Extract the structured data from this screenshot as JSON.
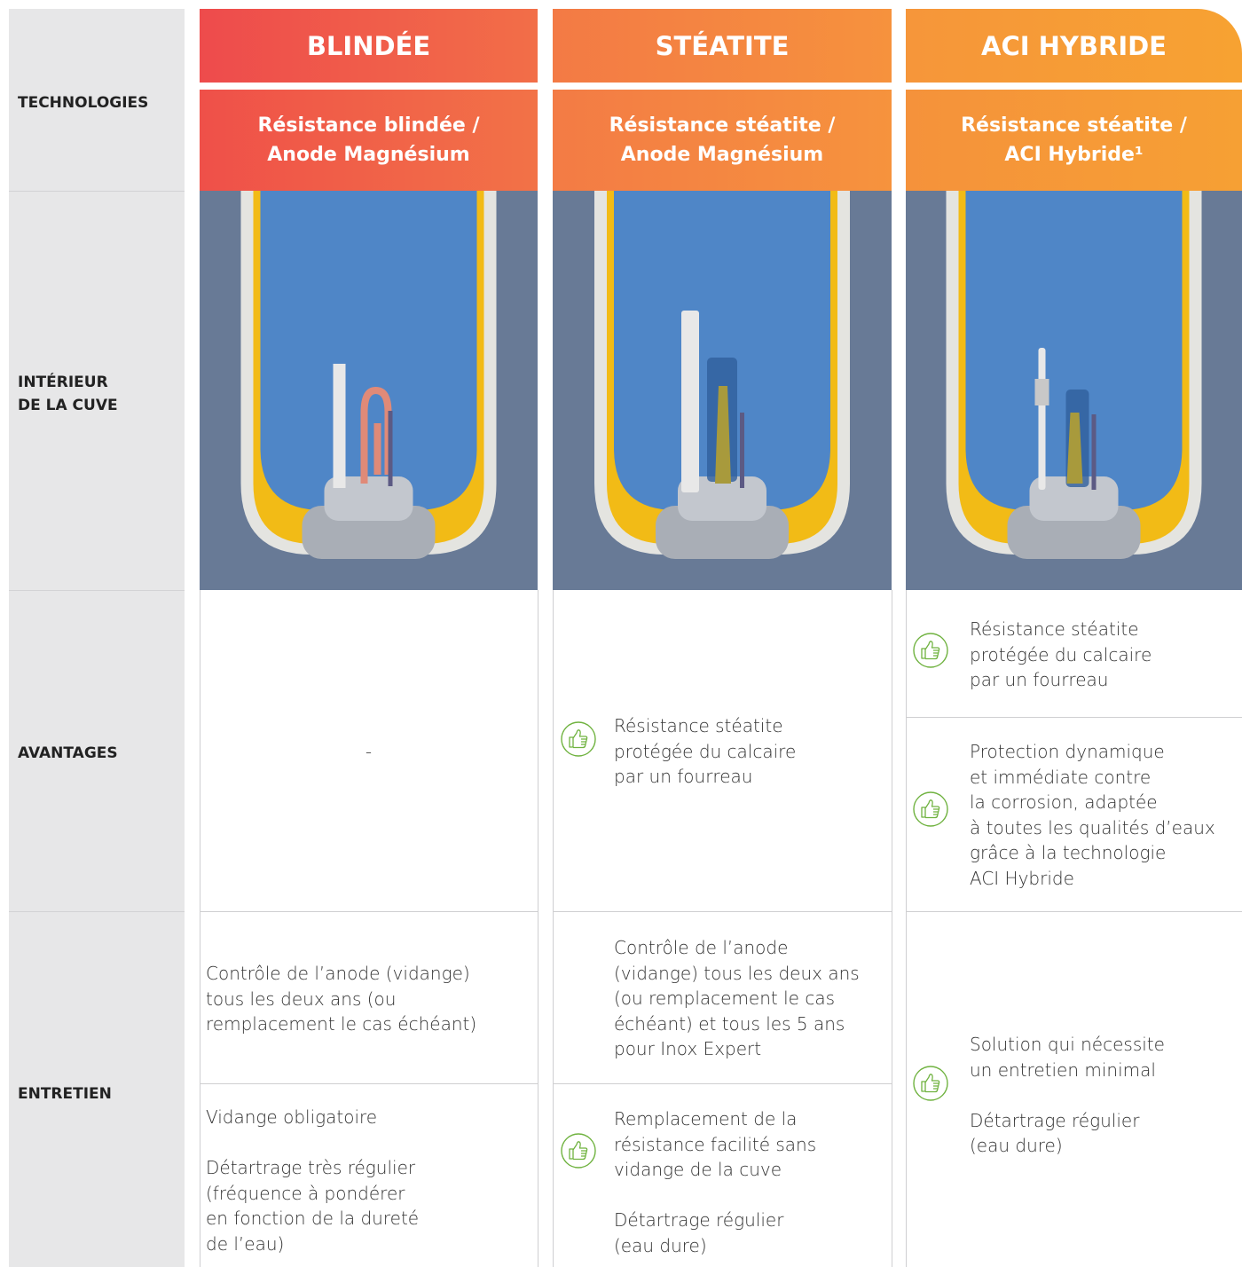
{
  "row_labels": {
    "technologies": "TECHNOLOGIES",
    "interior": "INTÉRIEUR\nDE LA CUVE",
    "advantages": "AVANTAGES",
    "maintenance": "ENTRETIEN"
  },
  "columns": [
    {
      "title": "BLINDÉE",
      "subtitle": "Résistance blindée /\nAnode Magnésium",
      "advantages": [
        "-"
      ],
      "maintenance": [
        "Contrôle de l’anode (vidange)\ntous les deux ans (ou\nremplacement le cas échéant)",
        "Vidange obligatoire\n\nDétartrage très régulier\n(fréquence à pondérer\nen fonction de la dureté\nde l’eau)"
      ]
    },
    {
      "title": "STÉATITE",
      "subtitle": "Résistance stéatite /\nAnode Magnésium",
      "advantages": [
        "Résistance stéatite\nprotégée du calcaire\npar un fourreau"
      ],
      "maintenance": [
        "Contrôle de l’anode\n(vidange) tous les deux ans\n(ou remplacement le cas\néchéant) et tous les 5 ans\npour Inox Expert",
        "Remplacement de la\nrésistance facilité sans\nvidange de la cuve\n\nDétartrage régulier\n(eau dure)"
      ]
    },
    {
      "title": "ACI HYBRIDE",
      "subtitle": "Résistance stéatite /\nACI Hybride¹",
      "advantages": [
        "Résistance stéatite\nprotégée du calcaire\npar un fourreau",
        "Protection dynamique\net immédiate contre\nla corrosion, adaptée\nà toutes les qualités d’eaux\ngrâce à la technologie\nACI Hybride"
      ],
      "maintenance": [
        "Solution qui nécessite\nun entretien minimal\n\nDétartrage régulier\n(eau dure)"
      ]
    }
  ]
}
